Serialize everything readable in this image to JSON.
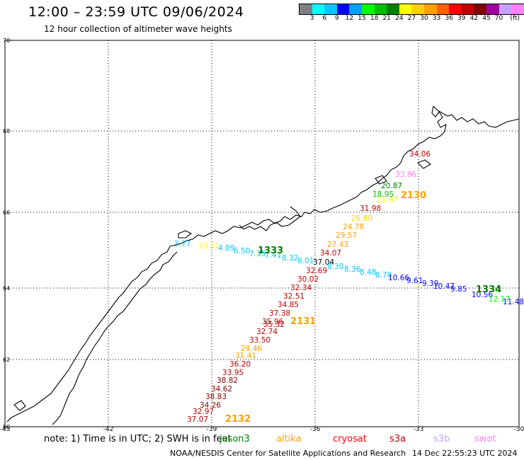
{
  "header": {
    "title": "12:00 – 23:59 UTC 09/06/2024",
    "subtitle": "12 hour collection of altimeter wave heights"
  },
  "legend": {
    "unit": "(ft)",
    "colors": [
      "#808080",
      "#00ffff",
      "#00c8ff",
      "#0000ff",
      "#00a0ff",
      "#00ff00",
      "#00c000",
      "#008000",
      "#ffff00",
      "#ffd000",
      "#ffa000",
      "#ff6000",
      "#ff0000",
      "#c00000",
      "#800000",
      "#a000a0",
      "#c8a0ff",
      "#ff80ff",
      "#000000"
    ],
    "ticks": [
      "3",
      "6",
      "9",
      "12",
      "15",
      "18",
      "21",
      "24",
      "27",
      "30",
      "33",
      "36",
      "39",
      "42",
      "45",
      "70"
    ]
  },
  "axes": {
    "lat_labels": [
      "70",
      "68",
      "66",
      "64",
      "62",
      "60"
    ],
    "lon_labels": [
      "-45",
      "-42",
      "-39",
      "-36",
      "-33",
      "-30"
    ]
  },
  "passes": [
    {
      "id": "1333",
      "color": "#008000"
    },
    {
      "id": "1334",
      "color": "#008000"
    },
    {
      "id": "2130",
      "color": "#ffa000"
    },
    {
      "id": "2131",
      "color": "#ffa000"
    },
    {
      "id": "2132",
      "color": "#ffa000"
    }
  ],
  "track_a": {
    "values": [
      "34.06",
      "33.86",
      "20.87",
      "18.95",
      "21.87",
      "31.98",
      "26.80",
      "24.78",
      "29.57",
      "27.43",
      "34.07",
      "37.04",
      "32.69",
      "30.02",
      "32.34",
      "32.51",
      "34.85",
      "37.38",
      "35.96",
      "35.32",
      "32.74",
      "33.50",
      "29.46",
      "31.41",
      "36.20",
      "33.95",
      "38.82",
      "34.62",
      "38.83",
      "34.26",
      "32.97",
      "37.07"
    ],
    "colors": [
      "#c00000",
      "#ff80ff",
      "#008000",
      "#00c000",
      "#ffff00",
      "#c00000",
      "#ffd000",
      "#ffa000",
      "#ffa000",
      "#ffa000",
      "#c00000",
      "#000000",
      "#c00000",
      "#c00000",
      "#c00000",
      "#c00000",
      "#c00000",
      "#c00000",
      "#c00000",
      "#c00000",
      "#c00000",
      "#c00000",
      "#ffa000",
      "#ffa000",
      "#c00000",
      "#c00000",
      "#800000",
      "#800000",
      "#800000",
      "#800000",
      "#c00000",
      "#c00000"
    ]
  },
  "track_b": {
    "values": [
      "3.77",
      "23.51",
      "4.09",
      "6.50",
      "7.35",
      "7.41",
      "8.32",
      "8.01",
      "8.30",
      "8.36",
      "8.48",
      "8.70",
      "10.66",
      "9.61",
      "9.39",
      "10.47",
      "9.85",
      "10.56",
      "12.17",
      "11.48"
    ],
    "colors": [
      "#00c8ff",
      "#ffff00",
      "#00c8ff",
      "#00c8ff",
      "#00c8ff",
      "#00c8ff",
      "#00c8ff",
      "#00c8ff",
      "#00c8ff",
      "#00c8ff",
      "#00c8ff",
      "#00c8ff",
      "#0000ff",
      "#0000ff",
      "#0000ff",
      "#0000ff",
      "#0000ff",
      "#0000ff",
      "#00ff00",
      "#0000ff"
    ]
  },
  "footer": {
    "note": "note: 1) Time is in UTC; 2) SWH is in feet",
    "satellites": [
      {
        "name": "jason3",
        "color": "#008000"
      },
      {
        "name": "altika",
        "color": "#ffa000"
      },
      {
        "name": "cryosat",
        "color": "#ff0000"
      },
      {
        "name": "s3a",
        "color": "#c00000"
      },
      {
        "name": "s3b",
        "color": "#c8a0ff"
      },
      {
        "name": "swot",
        "color": "#ff80ff"
      }
    ],
    "credit": "NOAA/NESDIS Center for Satellite Applications and Research",
    "timestamp": "14 Dec 22:55:23 UTC 2024"
  }
}
